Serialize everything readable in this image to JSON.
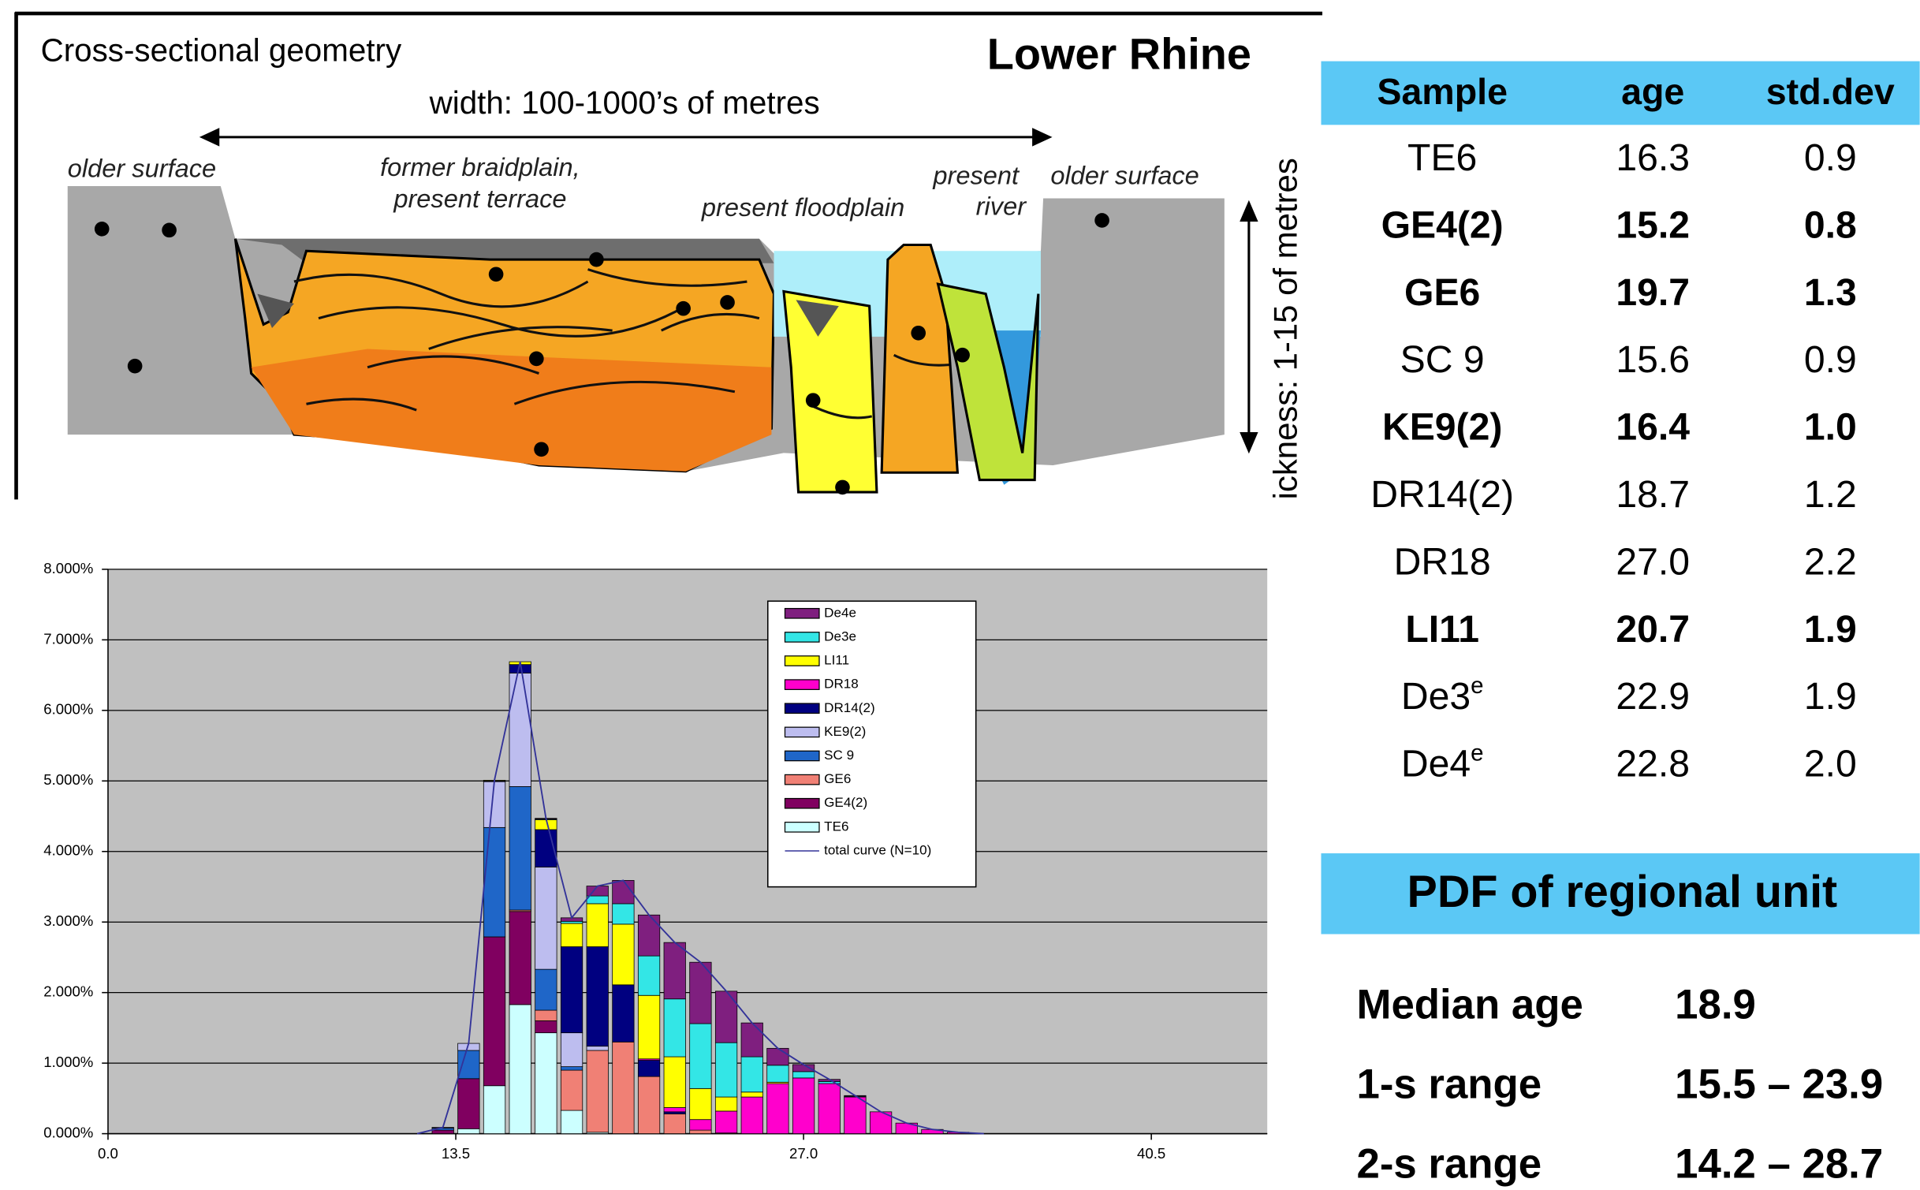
{
  "diagram": {
    "title": "Cross-sectional geometry",
    "region": "Lower Rhine",
    "width_label": "width: 100-1000’s of metres",
    "thickness_label": "ickness: 1-15 of metres",
    "labels": [
      "older surface",
      "former braidplain,",
      "present terrace",
      "present floodplain",
      "present",
      "river",
      "older surface"
    ]
  },
  "chart_data": {
    "type": "histogram",
    "bins": [
      11.5,
      12.5,
      13.5,
      14.5,
      15.5,
      16.5,
      17.5,
      18.5,
      19.5,
      20.5,
      21.5,
      22.5,
      23.5,
      24.5,
      25.5,
      26.5,
      27.5,
      28.5,
      29.5,
      30.5,
      31.5,
      32.5,
      33.5,
      34.5
    ],
    "xlim": [
      0,
      45
    ],
    "xticks": [
      {
        "value": 0,
        "label": "0.0"
      },
      13.5,
      {
        "value": 27,
        "label": "27.0"
      },
      40.5
    ],
    "ylim": [
      0,
      8
    ],
    "yticks": [
      {
        "value": 0,
        "label": "0.000%"
      },
      {
        "value": 1,
        "label": "1.000%"
      },
      {
        "value": 2,
        "label": "2.000%"
      },
      {
        "value": 3,
        "label": "3.000%"
      },
      {
        "value": 4,
        "label": "4.000%"
      },
      {
        "value": 5,
        "label": "5.000%"
      },
      {
        "value": 6,
        "label": "6.000%"
      },
      {
        "value": 7,
        "label": "7.000%"
      },
      {
        "value": 8,
        "label": "8.000%"
      }
    ],
    "grid": true,
    "stacked": true,
    "series": [
      {
        "name": "De4e",
        "color": "#7f1f7f",
        "values": [
          0,
          0,
          0,
          0,
          0,
          0.01,
          0.05,
          0.14,
          0.33,
          0.58,
          0.8,
          0.87,
          0.73,
          0.48,
          0.24,
          0.1,
          0.03,
          0.01,
          0,
          0,
          0,
          0,
          0
        ]
      },
      {
        "name": "De3e",
        "color": "#33e6e6",
        "values": [
          0,
          0,
          0,
          0,
          0,
          0.01,
          0.03,
          0.11,
          0.29,
          0.56,
          0.82,
          0.92,
          0.77,
          0.5,
          0.24,
          0.09,
          0.03,
          0.01,
          0,
          0,
          0,
          0,
          0
        ]
      },
      {
        "name": "LI11",
        "color": "#ffff00",
        "values": [
          0,
          0,
          0,
          0.01,
          0.04,
          0.14,
          0.33,
          0.61,
          0.86,
          0.9,
          0.72,
          0.44,
          0.2,
          0.07,
          0.02,
          0,
          0,
          0,
          0,
          0,
          0,
          0,
          0
        ]
      },
      {
        "name": "DR18",
        "color": "#ff00cc",
        "values": [
          0,
          0,
          0,
          0,
          0,
          0,
          0,
          0,
          0,
          0.02,
          0.06,
          0.15,
          0.31,
          0.52,
          0.71,
          0.79,
          0.71,
          0.52,
          0.31,
          0.15,
          0.06,
          0.02,
          0
        ]
      },
      {
        "name": "DR14(2)",
        "color": "#000080",
        "values": [
          0,
          0,
          0,
          0.01,
          0.12,
          0.53,
          1.22,
          1.41,
          0.81,
          0.23,
          0.03,
          0,
          0,
          0,
          0,
          0,
          0,
          0,
          0,
          0,
          0,
          0,
          0
        ]
      },
      {
        "name": "KE9(2)",
        "color": "#bdbdef",
        "values": [
          0,
          0.01,
          0.1,
          0.65,
          1.61,
          1.45,
          0.48,
          0.06,
          0,
          0,
          0,
          0,
          0,
          0,
          0,
          0,
          0,
          0,
          0,
          0,
          0,
          0,
          0
        ]
      },
      {
        "name": "SC 9",
        "color": "#1f66c8",
        "values": [
          0,
          0.03,
          0.4,
          1.55,
          1.75,
          0.58,
          0.05,
          0,
          0,
          0,
          0,
          0,
          0,
          0,
          0,
          0,
          0,
          0,
          0,
          0,
          0,
          0,
          0
        ]
      },
      {
        "name": "GE6",
        "color": "#f08075",
        "values": [
          0,
          0,
          0,
          0,
          0.02,
          0.15,
          0.57,
          1.16,
          1.3,
          0.81,
          0.28,
          0.05,
          0.01,
          0,
          0,
          0,
          0,
          0,
          0,
          0,
          0,
          0,
          0
        ]
      },
      {
        "name": "GE4(2)",
        "color": "#800060",
        "values": [
          0,
          0.05,
          0.71,
          2.11,
          1.32,
          0.17,
          0,
          0,
          0,
          0,
          0,
          0,
          0,
          0,
          0,
          0,
          0,
          0,
          0,
          0,
          0,
          0,
          0
        ]
      },
      {
        "name": "TE6",
        "color": "#ccffff",
        "values": [
          0,
          0,
          0.07,
          0.68,
          1.83,
          1.43,
          0.33,
          0.02,
          0,
          0,
          0,
          0,
          0,
          0,
          0,
          0,
          0,
          0,
          0,
          0,
          0,
          0,
          0
        ]
      },
      {
        "name": "total curve (N=10)",
        "type": "line",
        "color": "#333399",
        "x": [
          12,
          13,
          14,
          15,
          16,
          17,
          18,
          19,
          20,
          21,
          22,
          23,
          24,
          25,
          26,
          27,
          28,
          29,
          30,
          31,
          32,
          33,
          34
        ],
        "values": [
          0,
          0.09,
          1.28,
          5.01,
          6.69,
          4.47,
          3.06,
          3.51,
          3.59,
          3.1,
          2.71,
          2.43,
          2.02,
          1.57,
          1.21,
          0.98,
          0.77,
          0.54,
          0.31,
          0.15,
          0.06,
          0.02,
          0
        ]
      }
    ]
  },
  "table": {
    "header": [
      "Sample",
      "age",
      "std.dev"
    ],
    "rows": [
      {
        "cells": [
          "TE6",
          "16.3",
          "0.9"
        ],
        "bold": false
      },
      {
        "cells": [
          "GE4(2)",
          "15.2",
          "0.8"
        ],
        "bold": true
      },
      {
        "cells": [
          "GE6",
          "19.7",
          "1.3"
        ],
        "bold": true
      },
      {
        "cells": [
          "SC 9",
          "15.6",
          "0.9"
        ],
        "bold": false
      },
      {
        "cells": [
          "KE9(2)",
          "16.4",
          "1.0"
        ],
        "bold": true
      },
      {
        "cells": [
          "DR14(2)",
          "18.7",
          "1.2"
        ],
        "bold": false
      },
      {
        "cells": [
          "DR18",
          "27.0",
          "2.2"
        ],
        "bold": false
      },
      {
        "cells": [
          "LI11",
          "20.7",
          "1.9"
        ],
        "bold": true
      },
      {
        "cells": [
          "De3",
          "22.9",
          "1.9"
        ],
        "sup": "e",
        "bold": false
      },
      {
        "cells": [
          "De4",
          "22.8",
          "2.0"
        ],
        "sup": "e",
        "bold": false
      }
    ]
  },
  "summary": {
    "title": "PDF of regional unit",
    "rows": [
      [
        "Median age",
        "18.9"
      ],
      [
        "1-s range",
        "15.5 – 23.9"
      ],
      [
        "2-s range",
        "14.2 – 28.7"
      ]
    ]
  }
}
